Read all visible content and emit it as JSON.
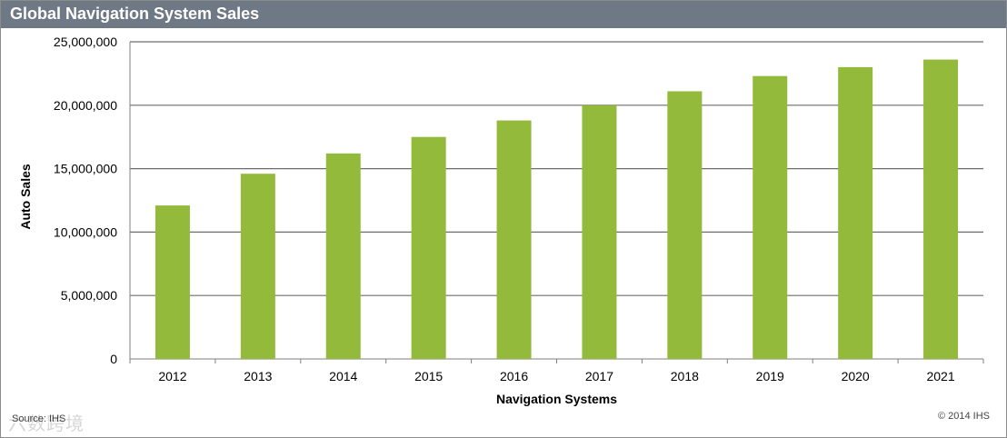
{
  "title": "Global Navigation System Sales",
  "source": "Source: IHS",
  "copyright": "© 2014 IHS",
  "watermark": "六数跨境",
  "colors": {
    "bar": "#94ba3c",
    "title_bar": "#6f7985",
    "grid": "#6d6d6d",
    "axis": "#7f7f7f"
  },
  "chart_data": {
    "type": "bar",
    "categories": [
      "2012",
      "2013",
      "2014",
      "2015",
      "2016",
      "2017",
      "2018",
      "2019",
      "2020",
      "2021"
    ],
    "values": [
      12100000,
      14600000,
      16200000,
      17500000,
      18800000,
      20000000,
      21100000,
      22300000,
      23000000,
      23600000
    ],
    "xlabel": "Navigation Systems",
    "ylabel": "Auto Sales",
    "ylim": [
      0,
      25000000
    ],
    "yticks": [
      0,
      5000000,
      10000000,
      15000000,
      20000000,
      25000000
    ],
    "ytick_labels": [
      "0",
      "5,000,000",
      "10,000,000",
      "15,000,000",
      "20,000,000",
      "25,000,000"
    ],
    "grid": true,
    "legend": "none"
  }
}
